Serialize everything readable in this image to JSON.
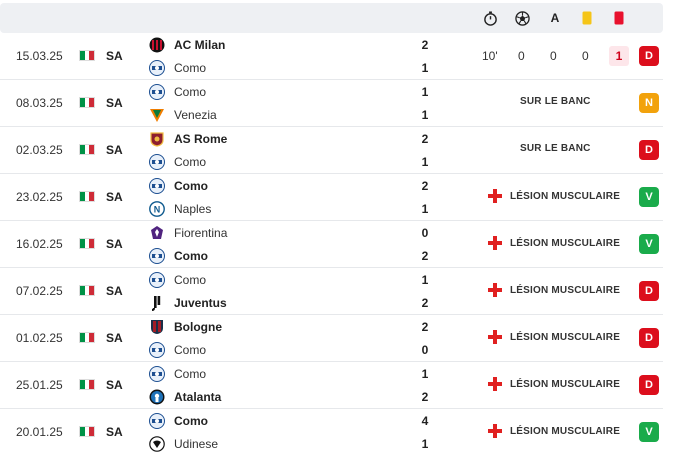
{
  "header": {
    "icons": [
      "stopwatch-icon",
      "ball-icon",
      "assist-icon",
      "yellow-card-icon",
      "red-card-icon"
    ],
    "assist_label": "A",
    "colors": {
      "yellow": "#f5c518",
      "red": "#e8112d"
    }
  },
  "colors": {
    "win": "#1aab4b",
    "draw": "#f2a20c",
    "loss": "#dc0e1c",
    "italy_flag": [
      "#009246",
      "#ffffff",
      "#ce2b37"
    ]
  },
  "matches": [
    {
      "date": "15.03.25",
      "competition": "SA",
      "home": {
        "name": "AC Milan",
        "logo": "ac-milan-logo",
        "bold": true,
        "score": "2"
      },
      "away": {
        "name": "Como",
        "logo": "como-logo",
        "bold": false,
        "score": "1"
      },
      "stats": {
        "minutes": "10'",
        "goals": "0",
        "assists": "0",
        "yellow": "0",
        "red": "1"
      },
      "status": null,
      "result": "D",
      "result_color": "loss"
    },
    {
      "date": "08.03.25",
      "competition": "SA",
      "home": {
        "name": "Como",
        "logo": "como-logo",
        "bold": false,
        "score": "1"
      },
      "away": {
        "name": "Venezia",
        "logo": "venezia-logo",
        "bold": false,
        "score": "1"
      },
      "status": {
        "type": "bench",
        "text": "SUR LE BANC"
      },
      "result": "N",
      "result_color": "draw"
    },
    {
      "date": "02.03.25",
      "competition": "SA",
      "home": {
        "name": "AS Rome",
        "logo": "as-roma-logo",
        "bold": true,
        "score": "2"
      },
      "away": {
        "name": "Como",
        "logo": "como-logo",
        "bold": false,
        "score": "1"
      },
      "status": {
        "type": "bench",
        "text": "SUR LE BANC"
      },
      "result": "D",
      "result_color": "loss"
    },
    {
      "date": "23.02.25",
      "competition": "SA",
      "home": {
        "name": "Como",
        "logo": "como-logo",
        "bold": true,
        "score": "2"
      },
      "away": {
        "name": "Naples",
        "logo": "napoli-logo",
        "bold": false,
        "score": "1"
      },
      "status": {
        "type": "injury",
        "text": "LÉSION MUSCULAIRE"
      },
      "result": "V",
      "result_color": "win"
    },
    {
      "date": "16.02.25",
      "competition": "SA",
      "home": {
        "name": "Fiorentina",
        "logo": "fiorentina-logo",
        "bold": false,
        "score": "0"
      },
      "away": {
        "name": "Como",
        "logo": "como-logo",
        "bold": true,
        "score": "2"
      },
      "status": {
        "type": "injury",
        "text": "LÉSION MUSCULAIRE"
      },
      "result": "V",
      "result_color": "win"
    },
    {
      "date": "07.02.25",
      "competition": "SA",
      "home": {
        "name": "Como",
        "logo": "como-logo",
        "bold": false,
        "score": "1"
      },
      "away": {
        "name": "Juventus",
        "logo": "juventus-logo",
        "bold": true,
        "score": "2"
      },
      "status": {
        "type": "injury",
        "text": "LÉSION MUSCULAIRE"
      },
      "result": "D",
      "result_color": "loss"
    },
    {
      "date": "01.02.25",
      "competition": "SA",
      "home": {
        "name": "Bologne",
        "logo": "bologna-logo",
        "bold": true,
        "score": "2"
      },
      "away": {
        "name": "Como",
        "logo": "como-logo",
        "bold": false,
        "score": "0"
      },
      "status": {
        "type": "injury",
        "text": "LÉSION MUSCULAIRE"
      },
      "result": "D",
      "result_color": "loss"
    },
    {
      "date": "25.01.25",
      "competition": "SA",
      "home": {
        "name": "Como",
        "logo": "como-logo",
        "bold": false,
        "score": "1"
      },
      "away": {
        "name": "Atalanta",
        "logo": "atalanta-logo",
        "bold": true,
        "score": "2"
      },
      "status": {
        "type": "injury",
        "text": "LÉSION MUSCULAIRE"
      },
      "result": "D",
      "result_color": "loss"
    },
    {
      "date": "20.01.25",
      "competition": "SA",
      "home": {
        "name": "Como",
        "logo": "como-logo",
        "bold": true,
        "score": "4"
      },
      "away": {
        "name": "Udinese",
        "logo": "udinese-logo",
        "bold": false,
        "score": "1"
      },
      "status": {
        "type": "injury",
        "text": "LÉSION MUSCULAIRE"
      },
      "result": "V",
      "result_color": "win"
    }
  ]
}
